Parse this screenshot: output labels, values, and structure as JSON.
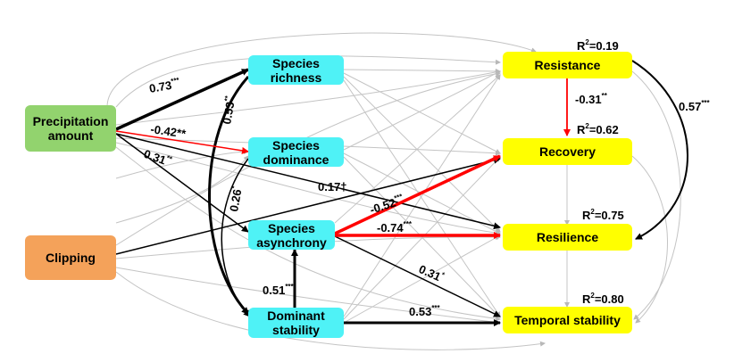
{
  "nodes": {
    "precip": "Precipitation amount",
    "clipping": "Clipping",
    "richness": "Species richness",
    "dominance": "Species dominance",
    "asynchrony": "Species asynchrony",
    "dominant_stability": "Dominant stability",
    "resistance": "Resistance",
    "recovery": "Recovery",
    "resilience": "Resilience",
    "temporal": "Temporal stability"
  },
  "r2": {
    "resistance": "=0.19",
    "recovery": "=0.62",
    "resilience": "=0.75",
    "temporal": "=0.80",
    "prefix": "R",
    "sup": "2"
  },
  "paths": {
    "precip_richness": {
      "value": "0.73",
      "sig": "***"
    },
    "precip_dominance": {
      "value": "-0.42**",
      "sig": ""
    },
    "precip_asynchrony": {
      "value": "0.31",
      "sig": "**"
    },
    "richness_stability": {
      "value": "0.53",
      "sig": "**"
    },
    "dominance_stability": {
      "value": "0.26",
      "sig": "*"
    },
    "precip_recovery": {
      "value": "0.17†",
      "sig": ""
    },
    "asynchrony_recovery": {
      "value": "-0.52",
      "sig": "***"
    },
    "asynchrony_resilience": {
      "value": "-0.74",
      "sig": "***"
    },
    "asynchrony_temporal": {
      "value": "0.31",
      "sig": "*"
    },
    "stability_asynchrony": {
      "value": "0.51",
      "sig": "***"
    },
    "stability_temporal": {
      "value": "0.53",
      "sig": "***"
    },
    "resistance_recovery": {
      "value": "-0.31",
      "sig": "**"
    },
    "resistance_resilience": {
      "value": "0.57",
      "sig": "***"
    }
  },
  "colors": {
    "positive": "#000000",
    "negative": "#ff0000",
    "nonsignificant": "#c0c0c0"
  }
}
